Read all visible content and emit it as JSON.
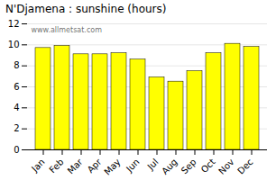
{
  "chart_data": {
    "type": "bar",
    "title": "N'Djamena : sunshine (hours)",
    "categories": [
      "Jan",
      "Feb",
      "Mar",
      "Apr",
      "May",
      "Jun",
      "Jul",
      "Aug",
      "Sep",
      "Oct",
      "Nov",
      "Dec"
    ],
    "values": [
      9.7,
      9.9,
      9.1,
      9.1,
      9.2,
      8.6,
      6.9,
      6.5,
      7.5,
      9.2,
      10.1,
      9.8
    ],
    "color": "#FFFF00",
    "ylim": [
      0,
      12
    ],
    "yticks": [
      0,
      2,
      4,
      6,
      8,
      10,
      12
    ],
    "grid": true,
    "annotation": "www.allmetsat.com"
  }
}
